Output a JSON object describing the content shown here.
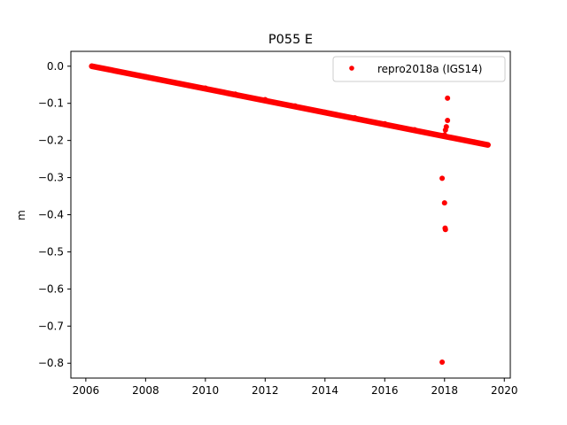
{
  "chart_data": {
    "type": "scatter",
    "title": "P055 E",
    "xlabel": "",
    "ylabel": "m",
    "xlim": [
      2005.5,
      2020.2
    ],
    "ylim": [
      -0.84,
      0.04
    ],
    "x_ticks": [
      2006,
      2008,
      2010,
      2012,
      2014,
      2016,
      2018,
      2020
    ],
    "x_tick_labels": [
      "2006",
      "2008",
      "2010",
      "2012",
      "2014",
      "2016",
      "2018",
      "2020"
    ],
    "y_ticks": [
      0.0,
      -0.1,
      -0.2,
      -0.3,
      -0.4,
      -0.5,
      -0.6,
      -0.7,
      -0.8
    ],
    "y_tick_labels": [
      "0.0",
      "−0.1",
      "−0.2",
      "−0.3",
      "−0.4",
      "−0.5",
      "−0.6",
      "−0.7",
      "−0.8"
    ],
    "grid": false,
    "legend_position": "top-right",
    "series": [
      {
        "name": "repro2018a (IGS14)",
        "color": "#ff0000",
        "marker": "circle",
        "trend": {
          "x_start": 2006.2,
          "y_start": 0.0,
          "x_end": 2019.45,
          "y_end": -0.212
        },
        "points": [
          {
            "x": 2006.2,
            "y": 0.0
          },
          {
            "x": 2007.0,
            "y": -0.013
          },
          {
            "x": 2008.0,
            "y": -0.028
          },
          {
            "x": 2009.0,
            "y": -0.045
          },
          {
            "x": 2010.0,
            "y": -0.059
          },
          {
            "x": 2011.0,
            "y": -0.075
          },
          {
            "x": 2012.0,
            "y": -0.09
          },
          {
            "x": 2013.0,
            "y": -0.107
          },
          {
            "x": 2014.0,
            "y": -0.124
          },
          {
            "x": 2015.0,
            "y": -0.139
          },
          {
            "x": 2016.0,
            "y": -0.155
          },
          {
            "x": 2017.0,
            "y": -0.171
          },
          {
            "x": 2018.0,
            "y": -0.185
          },
          {
            "x": 2019.0,
            "y": -0.204
          },
          {
            "x": 2019.45,
            "y": -0.212
          }
        ],
        "outliers": [
          {
            "x": 2017.92,
            "y": -0.302
          },
          {
            "x": 2017.92,
            "y": -0.797
          },
          {
            "x": 2018.0,
            "y": -0.368
          },
          {
            "x": 2018.02,
            "y": -0.436
          },
          {
            "x": 2018.03,
            "y": -0.44
          },
          {
            "x": 2018.03,
            "y": -0.172
          },
          {
            "x": 2018.06,
            "y": -0.163
          },
          {
            "x": 2018.1,
            "y": -0.146
          },
          {
            "x": 2018.1,
            "y": -0.086
          }
        ]
      }
    ]
  }
}
